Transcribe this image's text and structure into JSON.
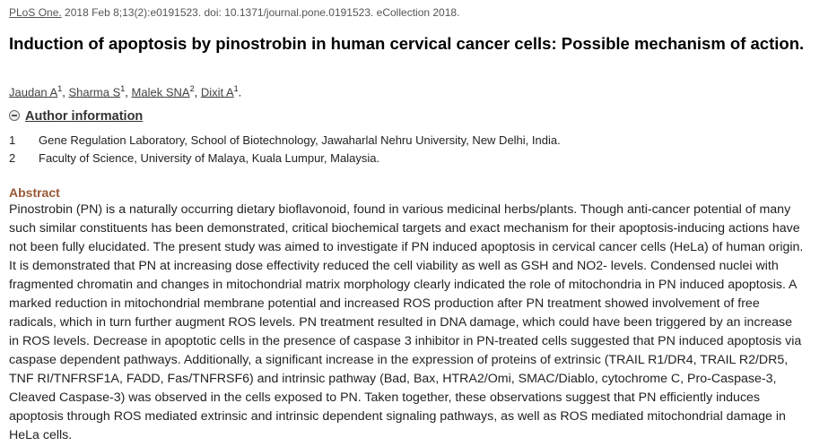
{
  "citation": {
    "journal": "PLoS One.",
    "details": " 2018 Feb 8;13(2):e0191523. doi: 10.1371/journal.pone.0191523. eCollection 2018."
  },
  "title": "Induction of apoptosis by pinostrobin in human cervical cancer cells: Possible mechanism of action.",
  "authors": [
    {
      "name": "Jaudan A",
      "aff": "1",
      "punct": ", "
    },
    {
      "name": "Sharma S",
      "aff": "1",
      "punct": ", "
    },
    {
      "name": "Malek SNA",
      "aff": "2",
      "punct": ", "
    },
    {
      "name": "Dixit A",
      "aff": "1",
      "punct": "."
    }
  ],
  "author_info": {
    "heading": "Author information",
    "affiliations": [
      {
        "num": "1",
        "text": "Gene Regulation Laboratory, School of Biotechnology, Jawaharlal Nehru University, New Delhi, India."
      },
      {
        "num": "2",
        "text": "Faculty of Science, University of Malaya, Kuala Lumpur, Malaysia."
      }
    ]
  },
  "abstract": {
    "heading": "Abstract",
    "lines": [
      "Pinostrobin (PN) is a naturally occurring dietary bioflavonoid, found in various medicinal herbs/plants. Though anti-cancer potential of many",
      "such similar constituents has been demonstrated, critical biochemical targets and exact mechanism for their apoptosis-inducing actions have",
      "not been fully elucidated. The present study was aimed to investigate if PN induced apoptosis in cervical cancer cells (HeLa) of human origin.",
      "It is demonstrated that PN at increasing dose effectivity reduced the cell viability as well as GSH and NO2- levels. Condensed nuclei with",
      "fragmented chromatin and changes in mitochondrial matrix morphology clearly indicated the role of mitochondria in PN induced apoptosis. A",
      "marked reduction in mitochondrial membrane potential and increased ROS production after PN treatment showed involvement of free",
      "radicals, which in turn further augment ROS levels. PN treatment resulted in DNA damage, which could have been triggered by an increase",
      "in ROS levels. Decrease in apoptotic cells in the presence of caspase 3 inhibitor in PN-treated cells suggested that PN induced apoptosis via",
      "caspase dependent pathways. Additionally, a significant increase in the expression of proteins of extrinsic (TRAIL R1/DR4, TRAIL R2/DR5,",
      "TNF RI/TNFRSF1A, FADD, Fas/TNFRSF6) and intrinsic pathway (Bad, Bax, HTRA2/Omi, SMAC/Diablo, cytochrome C, Pro-Caspase-3,",
      "Cleaved Caspase-3) was observed in the cells exposed to PN. Taken together, these observations suggest that PN efficiently induces",
      "apoptosis through ROS mediated extrinsic and intrinsic dependent signaling pathways, as well as ROS mediated mitochondrial damage in",
      "HeLa cells."
    ]
  }
}
